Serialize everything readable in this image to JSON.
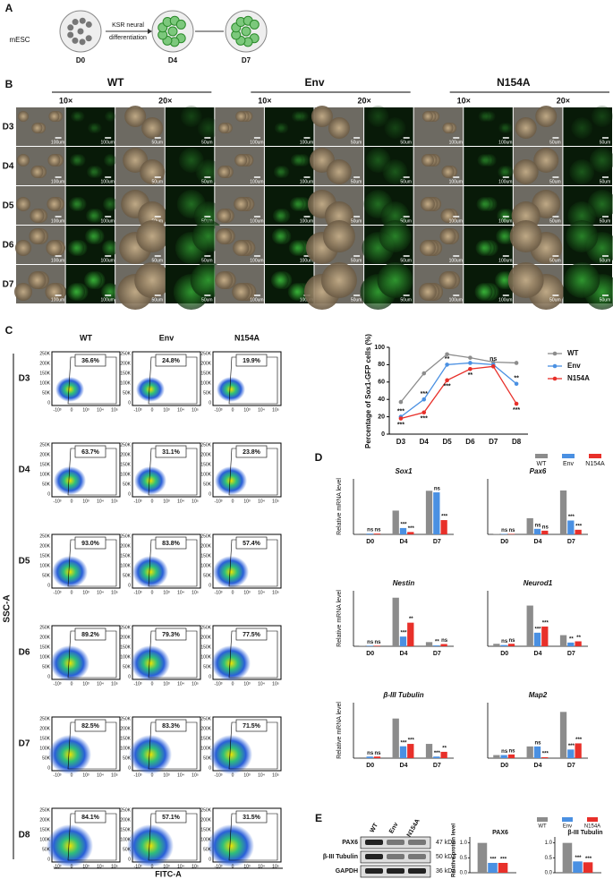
{
  "panel_a": {
    "label": "A",
    "start": "mESC",
    "arrow": [
      "KSR neural",
      "differentiation"
    ],
    "stages": [
      "D0",
      "D4",
      "D7"
    ]
  },
  "panel_b": {
    "label": "B",
    "groups": [
      "WT",
      "Env",
      "N154A"
    ],
    "magnifications": [
      "10×",
      "20×"
    ],
    "days": [
      "D3",
      "D4",
      "D5",
      "D6",
      "D7"
    ],
    "scale_bars": [
      "100um",
      "50um"
    ]
  },
  "panel_c": {
    "label": "C",
    "groups": [
      "WT",
      "Env",
      "N154A"
    ],
    "days": [
      "D3",
      "D4",
      "D5",
      "D6",
      "D7",
      "D8"
    ],
    "percentages": [
      [
        "36.6%",
        "24.8%",
        "19.9%"
      ],
      [
        "63.7%",
        "31.1%",
        "23.8%"
      ],
      [
        "93.0%",
        "83.8%",
        "57.4%"
      ],
      [
        "89.2%",
        "79.3%",
        "77.5%"
      ],
      [
        "82.5%",
        "83.3%",
        "71.5%"
      ],
      [
        "84.1%",
        "57.1%",
        "31.5%"
      ]
    ],
    "y_ticks": [
      "250K",
      "200K",
      "150K",
      "100K",
      "50K",
      "0"
    ],
    "x_ticks": [
      "-10³",
      "0",
      "10³",
      "10⁴",
      "10⁵"
    ],
    "y_label": "SSC-A",
    "x_label": "FITC-A"
  },
  "panel_d": {
    "label": "D"
  },
  "panel_e": {
    "label": "E",
    "lanes": [
      "WT",
      "Env",
      "N154A"
    ],
    "bands": [
      "PAX6",
      "β-III Tubulin",
      "GAPDH"
    ],
    "sizes": [
      "47 kDa",
      "50 kDa",
      "36 kDa"
    ]
  },
  "chart_data": [
    {
      "type": "line",
      "ylabel": "Percentage of Sox1-GFP cells (%)",
      "categories": [
        "D3",
        "D4",
        "D5",
        "D6",
        "D7",
        "D8"
      ],
      "ylim": [
        0,
        100
      ],
      "yticks": [
        0,
        20,
        40,
        60,
        80,
        100
      ],
      "series": [
        {
          "name": "WT",
          "color": "#8c8c8c",
          "values": [
            37,
            70,
            92,
            88,
            83,
            82
          ]
        },
        {
          "name": "Env",
          "color": "#4a90e2",
          "values": [
            20,
            40,
            80,
            82,
            80,
            58
          ],
          "sig": [
            "***",
            "***",
            "**",
            null,
            "ns",
            "**"
          ]
        },
        {
          "name": "N154A",
          "color": "#e8302a",
          "values": [
            18,
            25,
            62,
            75,
            78,
            35
          ],
          "sig": [
            "***",
            "***",
            "***",
            "**",
            null,
            "***"
          ]
        }
      ]
    },
    {
      "type": "bar",
      "title": "Sox1",
      "ylabel": "Relative mRNA level",
      "categories": [
        "D0",
        "D4",
        "D7"
      ],
      "ylim": [
        0,
        7
      ],
      "series": [
        {
          "name": "WT",
          "color": "#8c8c8c",
          "values": [
            0.1,
            3,
            5.5
          ]
        },
        {
          "name": "Env",
          "color": "#4a90e2",
          "values": [
            0.1,
            0.8,
            5.3
          ],
          "sig": [
            "ns",
            "***",
            "ns"
          ]
        },
        {
          "name": "N154A",
          "color": "#e8302a",
          "values": [
            0.1,
            0.3,
            1.8
          ],
          "sig": [
            "ns",
            "***",
            "***"
          ]
        }
      ]
    },
    {
      "type": "bar",
      "title": "Pax6",
      "categories": [
        "D0",
        "D4",
        "D7"
      ],
      "ylim": [
        0,
        12
      ],
      "series": [
        {
          "name": "WT",
          "color": "#8c8c8c",
          "values": [
            0.1,
            3.5,
            9.5
          ]
        },
        {
          "name": "Env",
          "color": "#4a90e2",
          "values": [
            0.1,
            1.2,
            3
          ],
          "sig": [
            "ns",
            "ns",
            "***"
          ]
        },
        {
          "name": "N154A",
          "color": "#e8302a",
          "values": [
            0.1,
            0.8,
            1
          ],
          "sig": [
            "ns",
            "ns",
            "***"
          ]
        }
      ]
    },
    {
      "type": "bar",
      "title": "Nestin",
      "ylabel": "Relative mRNA level",
      "categories": [
        "D0",
        "D4",
        "D7"
      ],
      "ylim": [
        0,
        20
      ],
      "series": [
        {
          "name": "WT",
          "color": "#8c8c8c",
          "values": [
            0.2,
            17.5,
            1.5
          ]
        },
        {
          "name": "Env",
          "color": "#4a90e2",
          "values": [
            0.2,
            3.5,
            0.3
          ],
          "sig": [
            "ns",
            "***",
            "**"
          ]
        },
        {
          "name": "N154A",
          "color": "#e8302a",
          "values": [
            0.2,
            8.5,
            0.8
          ],
          "sig": [
            "ns",
            "**",
            "ns"
          ]
        }
      ]
    },
    {
      "type": "bar",
      "title": "Neurod1",
      "categories": [
        "D0",
        "D4",
        "D7"
      ],
      "ylim": [
        0,
        4.5
      ],
      "series": [
        {
          "name": "WT",
          "color": "#8c8c8c",
          "values": [
            0.2,
            3.3,
            0.9
          ]
        },
        {
          "name": "Env",
          "color": "#4a90e2",
          "values": [
            0.1,
            1.1,
            0.3
          ],
          "sig": [
            "ns",
            "***",
            "**"
          ]
        },
        {
          "name": "N154A",
          "color": "#e8302a",
          "values": [
            0.2,
            1.6,
            0.4
          ],
          "sig": [
            "ns",
            "***",
            "**"
          ]
        }
      ]
    },
    {
      "type": "bar",
      "title": "β-III Tubulin",
      "ylabel": "Relative mRNA level",
      "categories": [
        "D0",
        "D4",
        "D7"
      ],
      "ylim": [
        0,
        7
      ],
      "series": [
        {
          "name": "WT",
          "color": "#8c8c8c",
          "values": [
            0.1,
            5,
            1.8
          ]
        },
        {
          "name": "Env",
          "color": "#4a90e2",
          "values": [
            0.2,
            1.5,
            0.2
          ],
          "sig": [
            "ns",
            "***",
            "***"
          ]
        },
        {
          "name": "N154A",
          "color": "#e8302a",
          "values": [
            0.2,
            1.8,
            0.8
          ],
          "sig": [
            "ns",
            "***",
            "**"
          ]
        }
      ]
    },
    {
      "type": "bar",
      "title": "Map2",
      "categories": [
        "D0",
        "D4",
        "D7"
      ],
      "ylim": [
        0,
        18
      ],
      "series": [
        {
          "name": "WT",
          "color": "#8c8c8c",
          "values": [
            1,
            3.8,
            15
          ]
        },
        {
          "name": "Env",
          "color": "#4a90e2",
          "values": [
            1,
            3.8,
            2.8
          ],
          "sig": [
            "ns",
            "ns",
            "***"
          ]
        },
        {
          "name": "N154A",
          "color": "#e8302a",
          "values": [
            1.2,
            0.3,
            4.8
          ],
          "sig": [
            "ns",
            "***",
            "***"
          ]
        }
      ]
    },
    {
      "type": "bar",
      "title": "PAX6",
      "ylabel": "Relative protein level",
      "ylim": [
        0,
        1.2
      ],
      "yticks": [
        {
          "value": 0,
          "label": "0.0"
        },
        {
          "value": 0.5,
          "label": "0.5"
        },
        {
          "value": 1,
          "label": "1.0"
        }
      ],
      "series": [
        {
          "name": "WT",
          "color": "#8c8c8c",
          "values": [
            1.0
          ]
        },
        {
          "name": "Env",
          "color": "#4a90e2",
          "values": [
            0.33
          ],
          "sig": [
            "***"
          ]
        },
        {
          "name": "N154A",
          "color": "#e8302a",
          "values": [
            0.33
          ],
          "sig": [
            "***"
          ]
        }
      ]
    },
    {
      "type": "bar",
      "title": "β-III Tubulin",
      "ylim": [
        0,
        1.2
      ],
      "yticks": [
        {
          "value": 0,
          "label": "0.0"
        },
        {
          "value": 0.5,
          "label": "0.5"
        },
        {
          "value": 1,
          "label": "1.0"
        }
      ],
      "series": [
        {
          "name": "WT",
          "color": "#8c8c8c",
          "values": [
            1.0
          ]
        },
        {
          "name": "Env",
          "color": "#4a90e2",
          "values": [
            0.38
          ],
          "sig": [
            "***"
          ]
        },
        {
          "name": "N154A",
          "color": "#e8302a",
          "values": [
            0.35
          ],
          "sig": [
            "***"
          ]
        }
      ]
    }
  ]
}
